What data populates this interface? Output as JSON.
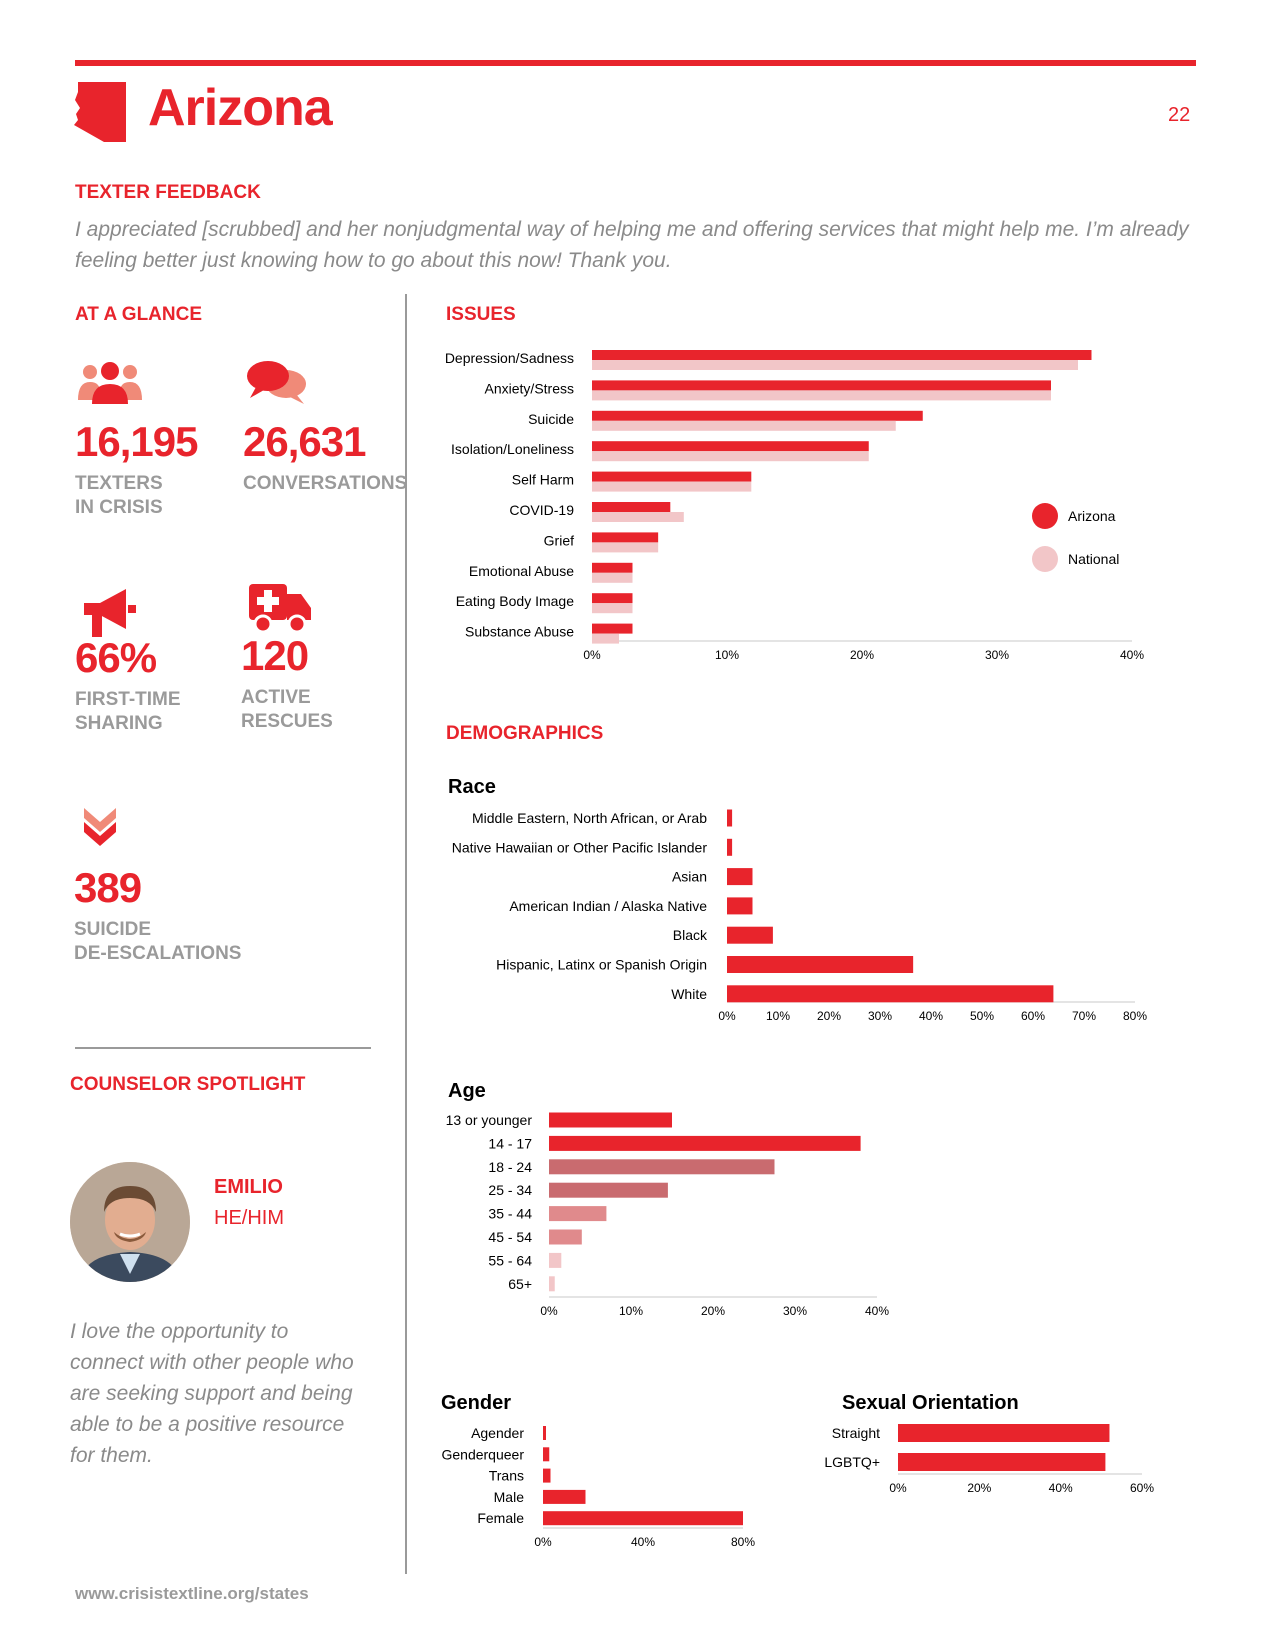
{
  "header": {
    "title": "Arizona",
    "page_number": "22"
  },
  "texter_feedback": {
    "heading": "TEXTER FEEDBACK",
    "quote": "I appreciated [scrubbed] and her nonjudgmental way of helping me and offering services that might help me. I’m already feeling better just knowing how to go about this now! Thank you."
  },
  "at_a_glance": {
    "heading": "AT A GLANCE",
    "stats": [
      {
        "value": "16,195",
        "label_line1": "TEXTERS",
        "label_line2": "IN CRISIS",
        "icon": "people-icon"
      },
      {
        "value": "26,631",
        "label_line1": "CONVERSATIONS",
        "label_line2": "",
        "icon": "chat-bubbles-icon"
      },
      {
        "value": "66%",
        "label_line1": "FIRST-TIME",
        "label_line2": "SHARING",
        "icon": "megaphone-icon"
      },
      {
        "value": "120",
        "label_line1": "ACTIVE",
        "label_line2": "RESCUES",
        "icon": "ambulance-icon"
      },
      {
        "value": "389",
        "label_line1": "SUICIDE",
        "label_line2": "DE-ESCALATIONS",
        "icon": "double-chevron-down-icon"
      }
    ]
  },
  "counselor_spotlight": {
    "heading": "COUNSELOR SPOTLIGHT",
    "name": "EMILIO",
    "pronouns": "HE/HIM",
    "quote": "I love the opportunity to connect with other people who are seeking support and being able to be a positive resource for them."
  },
  "footer": {
    "url": "www.crisistextline.org/states"
  },
  "colors": {
    "accent": "#e8242c",
    "national": "#f2c6c8",
    "gray": "#9a9a9a"
  },
  "section_headings": {
    "issues": "ISSUES",
    "demographics": "DEMOGRAPHICS"
  },
  "chart_data": [
    {
      "id": "issues",
      "type": "bar",
      "orientation": "horizontal",
      "categories": [
        "Depression/Sadness",
        "Anxiety/Stress",
        "Suicide",
        "Isolation/Loneliness",
        "Self Harm",
        "COVID-19",
        "Grief",
        "Emotional Abuse",
        "Eating Body Image",
        "Substance Abuse"
      ],
      "series": [
        {
          "name": "Arizona",
          "values": [
            37,
            34,
            24.5,
            20.5,
            11.8,
            5.8,
            4.9,
            3,
            3,
            3
          ]
        },
        {
          "name": "National",
          "values": [
            36,
            34,
            22.5,
            20.5,
            11.8,
            6.8,
            4.9,
            3,
            3,
            2
          ]
        }
      ],
      "xlim": [
        0,
        40
      ],
      "xticks": [
        "0%",
        "10%",
        "20%",
        "30%",
        "40%"
      ],
      "legend": "right"
    },
    {
      "id": "race",
      "title": "Race",
      "type": "bar",
      "orientation": "horizontal",
      "categories": [
        "Middle Eastern, North African, or Arab",
        "Native Hawaiian or Other Pacific Islander",
        "Asian",
        "American Indian / Alaska Native",
        "Black",
        "Hispanic, Latinx or Spanish Origin",
        "White"
      ],
      "values": [
        1,
        1,
        5,
        5,
        9,
        36.5,
        64
      ],
      "xlim": [
        0,
        80
      ],
      "xticks": [
        "0%",
        "10%",
        "20%",
        "30%",
        "40%",
        "50%",
        "60%",
        "70%",
        "80%"
      ]
    },
    {
      "id": "age",
      "title": "Age",
      "type": "bar",
      "orientation": "horizontal",
      "categories": [
        "13 or younger",
        "14 - 17",
        "18 - 24",
        "25 - 34",
        "35 - 44",
        "45 - 54",
        "55 - 64",
        "65+"
      ],
      "values": [
        15,
        38,
        27.5,
        14.5,
        7,
        4,
        1.5,
        0.7
      ],
      "colors": [
        "#e8242c",
        "#e8242c",
        "#c96b6f",
        "#c96b6f",
        "#e08a8c",
        "#e08a8c",
        "#f2c6c8",
        "#f2c6c8"
      ],
      "xlim": [
        0,
        40
      ],
      "xticks": [
        "0%",
        "10%",
        "20%",
        "30%",
        "40%"
      ]
    },
    {
      "id": "gender",
      "title": "Gender",
      "type": "bar",
      "orientation": "horizontal",
      "categories": [
        "Agender",
        "Genderqueer",
        "Trans",
        "Male",
        "Female"
      ],
      "values": [
        1,
        2.5,
        3,
        17,
        80
      ],
      "xlim": [
        0,
        80
      ],
      "xticks": [
        "0%",
        "40%",
        "80%"
      ]
    },
    {
      "id": "sexual_orientation",
      "title": "Sexual Orientation",
      "type": "bar",
      "orientation": "horizontal",
      "categories": [
        "Straight",
        "LGBTQ+"
      ],
      "values": [
        52,
        51
      ],
      "xlim": [
        0,
        60
      ],
      "xticks": [
        "0%",
        "20%",
        "40%",
        "60%"
      ]
    }
  ]
}
